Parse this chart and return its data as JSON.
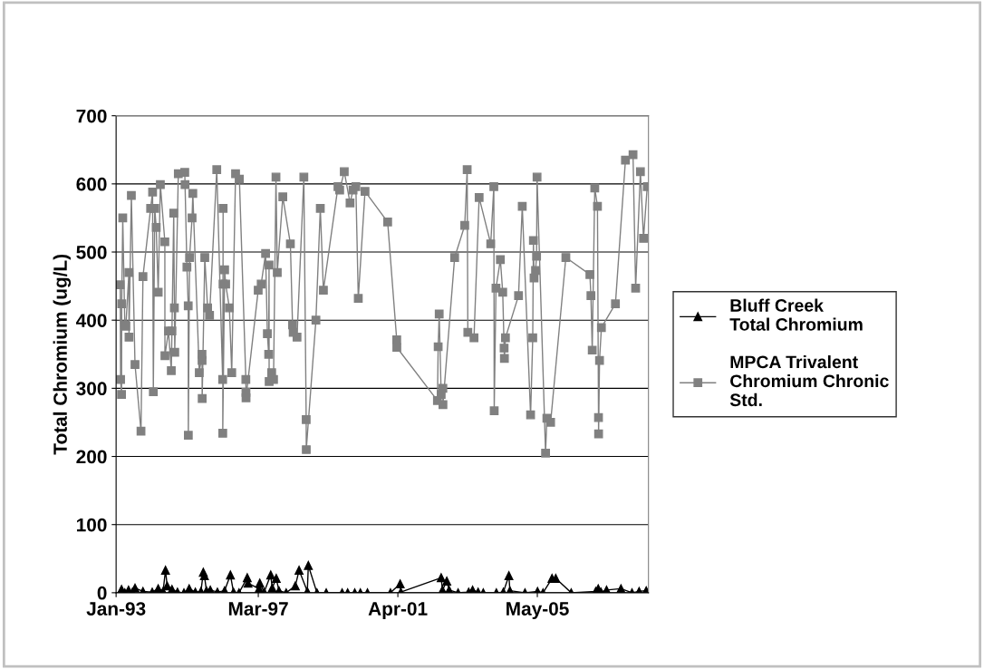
{
  "chart_data": {
    "type": "line",
    "ylabel": "Total Chromium (ug/L)",
    "xlim": [
      "1993-01-01",
      "2008-08-01"
    ],
    "xticks": [
      {
        "value": "1993-01-01",
        "label": "Jan-93"
      },
      {
        "value": "1997-03-01",
        "label": "Mar-97"
      },
      {
        "value": "2001-04-01",
        "label": "Apr-01"
      },
      {
        "value": "2005-05-01",
        "label": "May-05"
      }
    ],
    "ylim": [
      0,
      700
    ],
    "yticks": [
      0,
      100,
      200,
      300,
      400,
      500,
      600,
      700
    ],
    "grid": "y",
    "legend": "right",
    "series": [
      {
        "name": "Bluff Creek Total Chromium",
        "color": "#000000",
        "marker": "triangle",
        "x": [
          "1993-02-28",
          "1993-04-04",
          "1993-05-14",
          "1993-06-24",
          "1993-07-22",
          "1993-10-15",
          "1994-01-22",
          "1994-03-27",
          "1994-05-18",
          "1994-06-13",
          "1994-07-01",
          "1994-08-21",
          "1994-10-19",
          "1994-12-27",
          "1995-02-21",
          "1995-04-28",
          "1995-06-27",
          "1995-07-22",
          "1995-08-03",
          "1995-08-25",
          "1995-10-05",
          "1995-12-20",
          "1996-03-06",
          "1996-05-07",
          "1996-06-09",
          "1996-08-07",
          "1996-11-03",
          "1996-11-11",
          "1997-03-09",
          "1997-03-17",
          "1997-05-03",
          "1997-07-12",
          "1997-07-28",
          "1997-09-09",
          "1997-10-08",
          "1997-12-24",
          "1998-04-01",
          "1998-05-11",
          "1998-08-07",
          "1998-08-18",
          "1998-11-18",
          "1999-02-25",
          "1999-08-14",
          "1999-10-12",
          "1999-12-27",
          "2000-02-25",
          "2000-05-11",
          "2001-01-12",
          "2001-04-26",
          "2001-05-03",
          "2002-07-08",
          "2002-07-22",
          "2002-09-06",
          "2002-10-01",
          "2003-01-05",
          "2003-04-28",
          "2003-06-09",
          "2003-08-07",
          "2003-10-01",
          "2004-02-18",
          "2004-05-03",
          "2004-07-01",
          "2004-07-12",
          "2004-12-20",
          "2005-05-03",
          "2005-07-01",
          "2005-10-05",
          "2005-11-14",
          "2006-04-28",
          "2007-01-15",
          "2007-02-11",
          "2007-03-13",
          "2007-05-11",
          "2007-10-12",
          "2008-02-07",
          "2008-04-23",
          "2008-07-08"
        ],
        "values": [
          5,
          0,
          4,
          1,
          7,
          2,
          1,
          6,
          2,
          33,
          10,
          5,
          1,
          0,
          6,
          1,
          2,
          30,
          25,
          3,
          4,
          1,
          3,
          26,
          1,
          0,
          22,
          14,
          6,
          14,
          1,
          26,
          7,
          21,
          3,
          0,
          10,
          33,
          2,
          40,
          0,
          0,
          0,
          0,
          0,
          0,
          0,
          0,
          13,
          1,
          22,
          4,
          17,
          4,
          0,
          1,
          4,
          1,
          0,
          0,
          1,
          25,
          3,
          0,
          2,
          0,
          21,
          21,
          0,
          2,
          6,
          1,
          4,
          6,
          0,
          2,
          3
        ]
      },
      {
        "name": "MPCA Trivalent Chromium Chronic Std.",
        "color": "#808080",
        "marker": "square",
        "x": [
          "1993-02-14",
          "1993-02-18",
          "1993-02-28",
          "1993-03-02",
          "1993-03-13",
          "1993-04-04",
          "1993-04-15",
          "1993-05-18",
          "1993-05-19",
          "1993-06-13",
          "1993-07-22",
          "1993-09-24",
          "1993-10-15",
          "1994-01-05",
          "1994-01-26",
          "1994-02-03",
          "1994-02-18",
          "1994-03-06",
          "1994-03-27",
          "1994-04-19",
          "1994-06-06",
          "1994-06-07",
          "1994-07-15",
          "1994-08-14",
          "1994-08-21",
          "1994-09-09",
          "1994-09-16",
          "1994-09-20",
          "1994-10-28",
          "1995-01-05",
          "1995-01-08",
          "1995-01-28",
          "1995-02-11",
          "1995-02-12",
          "1995-02-25",
          "1995-03-24",
          "1995-04-01",
          "1995-06-09",
          "1995-07-08",
          "1995-07-09",
          "1995-07-10",
          "1995-08-07",
          "1995-09-06",
          "1995-09-27",
          "1995-12-13",
          "1996-02-14",
          "1996-02-18",
          "1996-02-19",
          "1996-02-15",
          "1996-03-06",
          "1996-03-17",
          "1996-04-26",
          "1996-05-21",
          "1996-07-01",
          "1996-08-11",
          "1996-10-19",
          "1996-10-20",
          "1996-10-21",
          "1997-02-28",
          "1997-04-01",
          "1997-05-18",
          "1997-06-06",
          "1997-06-20",
          "1997-06-24",
          "1997-06-25",
          "1997-07-22",
          "1997-08-11",
          "1997-09-06",
          "1997-09-20",
          "1997-11-18",
          "1998-02-07",
          "1998-03-02",
          "1998-03-09",
          "1998-04-19",
          "1998-07-01",
          "1998-07-26",
          "1998-07-27",
          "1998-11-07",
          "1998-12-24",
          "1999-01-26",
          "1999-07-01",
          "1999-07-19",
          "1999-09-06",
          "1999-11-07",
          "1999-12-09",
          "2000-01-08",
          "2000-02-03",
          "2000-04-15",
          "2000-12-13",
          "2001-03-20",
          "2001-03-21",
          "2002-05-29",
          "2002-06-06",
          "2002-06-17",
          "2002-07-08",
          "2002-07-26",
          "2002-07-27",
          "2002-11-29",
          "2003-03-17",
          "2003-04-12",
          "2003-04-19",
          "2003-06-24",
          "2003-08-18",
          "2003-12-20",
          "2004-01-22",
          "2004-01-26",
          "2004-02-14",
          "2004-04-01",
          "2004-04-26",
          "2004-05-11",
          "2004-05-14",
          "2004-05-25",
          "2004-10-12",
          "2004-11-21",
          "2005-02-18",
          "2005-03-13",
          "2005-03-20",
          "2005-03-27",
          "2005-04-12",
          "2005-04-23",
          "2005-04-28",
          "2005-07-28",
          "2005-08-11",
          "2005-09-20",
          "2006-03-02",
          "2006-11-14",
          "2006-11-25",
          "2006-12-09",
          "2007-01-05",
          "2007-02-03",
          "2007-02-14",
          "2007-02-15",
          "2007-02-25",
          "2007-03-17",
          "2007-08-14",
          "2007-11-29",
          "2008-02-18",
          "2008-03-17",
          "2008-05-07",
          "2008-06-09",
          "2008-07-19"
        ],
        "values": [
          452,
          313,
          291,
          424,
          550,
          393,
          391,
          470,
          375,
          583,
          335,
          237,
          464,
          564,
          588,
          295,
          564,
          536,
          441,
          599,
          515,
          348,
          384,
          326,
          384,
          557,
          418,
          353,
          615,
          617,
          599,
          478,
          421,
          231,
          492,
          550,
          586,
          323,
          350,
          341,
          285,
          492,
          418,
          407,
          621,
          313,
          453,
          564,
          234,
          474,
          453,
          418,
          323,
          615,
          607,
          313,
          294,
          286,
          444,
          453,
          498,
          380,
          350,
          481,
          310,
          323,
          313,
          610,
          470,
          581,
          512,
          393,
          382,
          375,
          610,
          254,
          210,
          400,
          564,
          444,
          596,
          591,
          618,
          572,
          591,
          596,
          432,
          589,
          544,
          371,
          360,
          282,
          361,
          409,
          291,
          300,
          276,
          492,
          539,
          621,
          382,
          374,
          580,
          512,
          596,
          267,
          447,
          489,
          441,
          359,
          344,
          374,
          436,
          567,
          261,
          374,
          517,
          462,
          473,
          494,
          610,
          205,
          256,
          250,
          492,
          467,
          436,
          356,
          594,
          567,
          257,
          233,
          341,
          389,
          424,
          635,
          643,
          447,
          618,
          520,
          596
        ]
      }
    ]
  }
}
